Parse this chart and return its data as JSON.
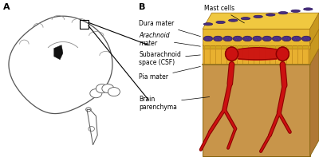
{
  "panel_A_label": "A",
  "panel_B_label": "B",
  "bg_color": "#ffffff",
  "brain_outline_color": "#555555",
  "vessel_red": "#cc1111",
  "vessel_dark": "#8b0000",
  "mast_cell_fill": "#4a3080",
  "mast_cell_outline": "#2a1560",
  "dura_color": "#e8b830",
  "dura_top_color": "#f0c840",
  "dura_dark": "#c89820",
  "dura_edge": "#a07010",
  "arachnoid_color": "#d4a020",
  "sub_color": "#e8b830",
  "par_color": "#c8954a",
  "par_top_color": "#d4a055",
  "par_dark": "#b07835",
  "par_edge": "#8B6914",
  "trab_color": "#c89020",
  "labels": {
    "mast_cells": "Mast cells",
    "dura_mater": "Dura mater",
    "arachnoid_mater": "Arachnoid\nmater",
    "subarachnoid": "Subarachnoid\nspace (CSF)",
    "pia_mater": "Pia mater",
    "brain_parenchyma": "Brain\nparenchyma"
  },
  "label_font_size": 5.5,
  "panel_label_size": 8
}
